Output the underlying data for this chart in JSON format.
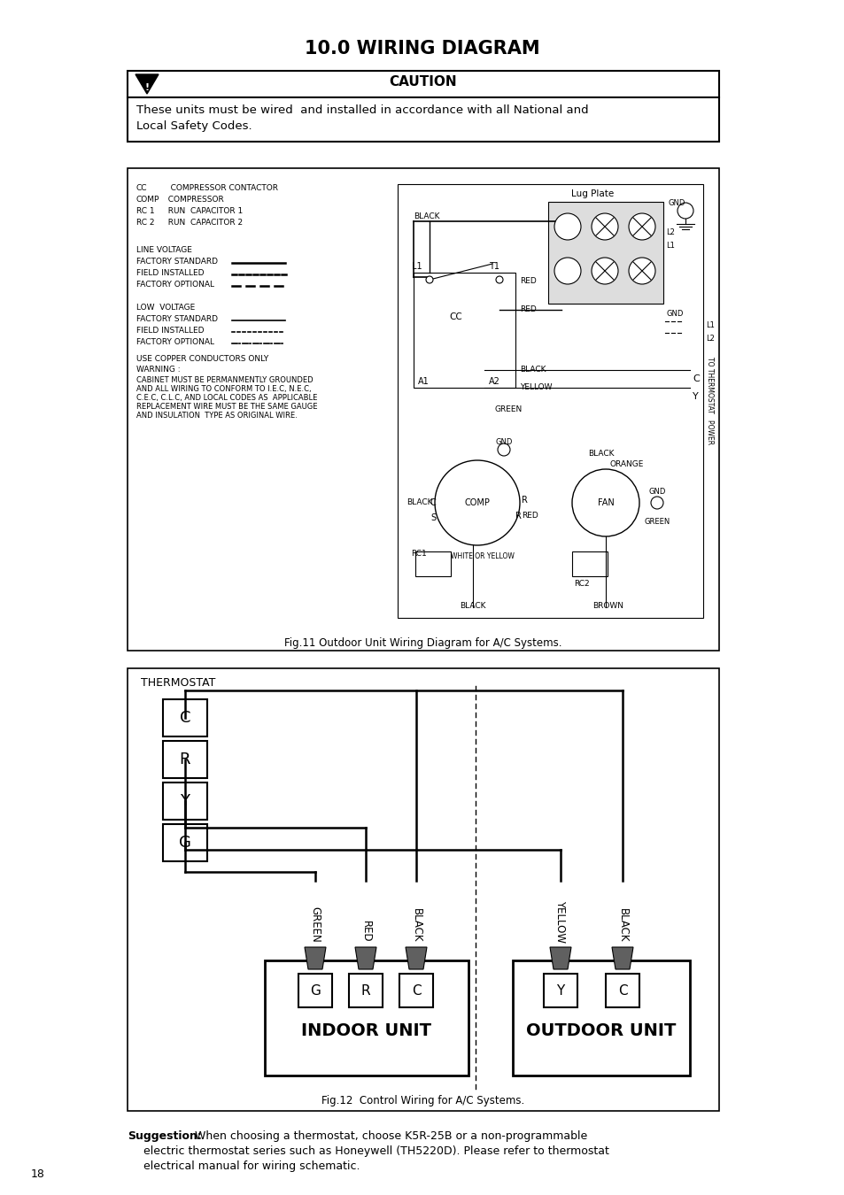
{
  "title": "10.0 WIRING DIAGRAM",
  "caution_text": "CAUTION",
  "caution_body": "These units must be wired  and installed in accordance with all National and\nLocal Safety Codes.",
  "fig11_caption": "Fig.11 Outdoor Unit Wiring Diagram for A/C Systems.",
  "fig12_caption": "Fig.12  Control Wiring for A/C Systems.",
  "suggestion_bold": "Suggestion:",
  "suggestion_text": " When choosing a thermostat, choose K5R-25B or a non-programmable\nelectric thermostat series such as Honeywell (TH5220D). Please refer to thermostat\nelectrical manual for wiring schematic.",
  "page_number": "18",
  "bg_color": "#ffffff"
}
